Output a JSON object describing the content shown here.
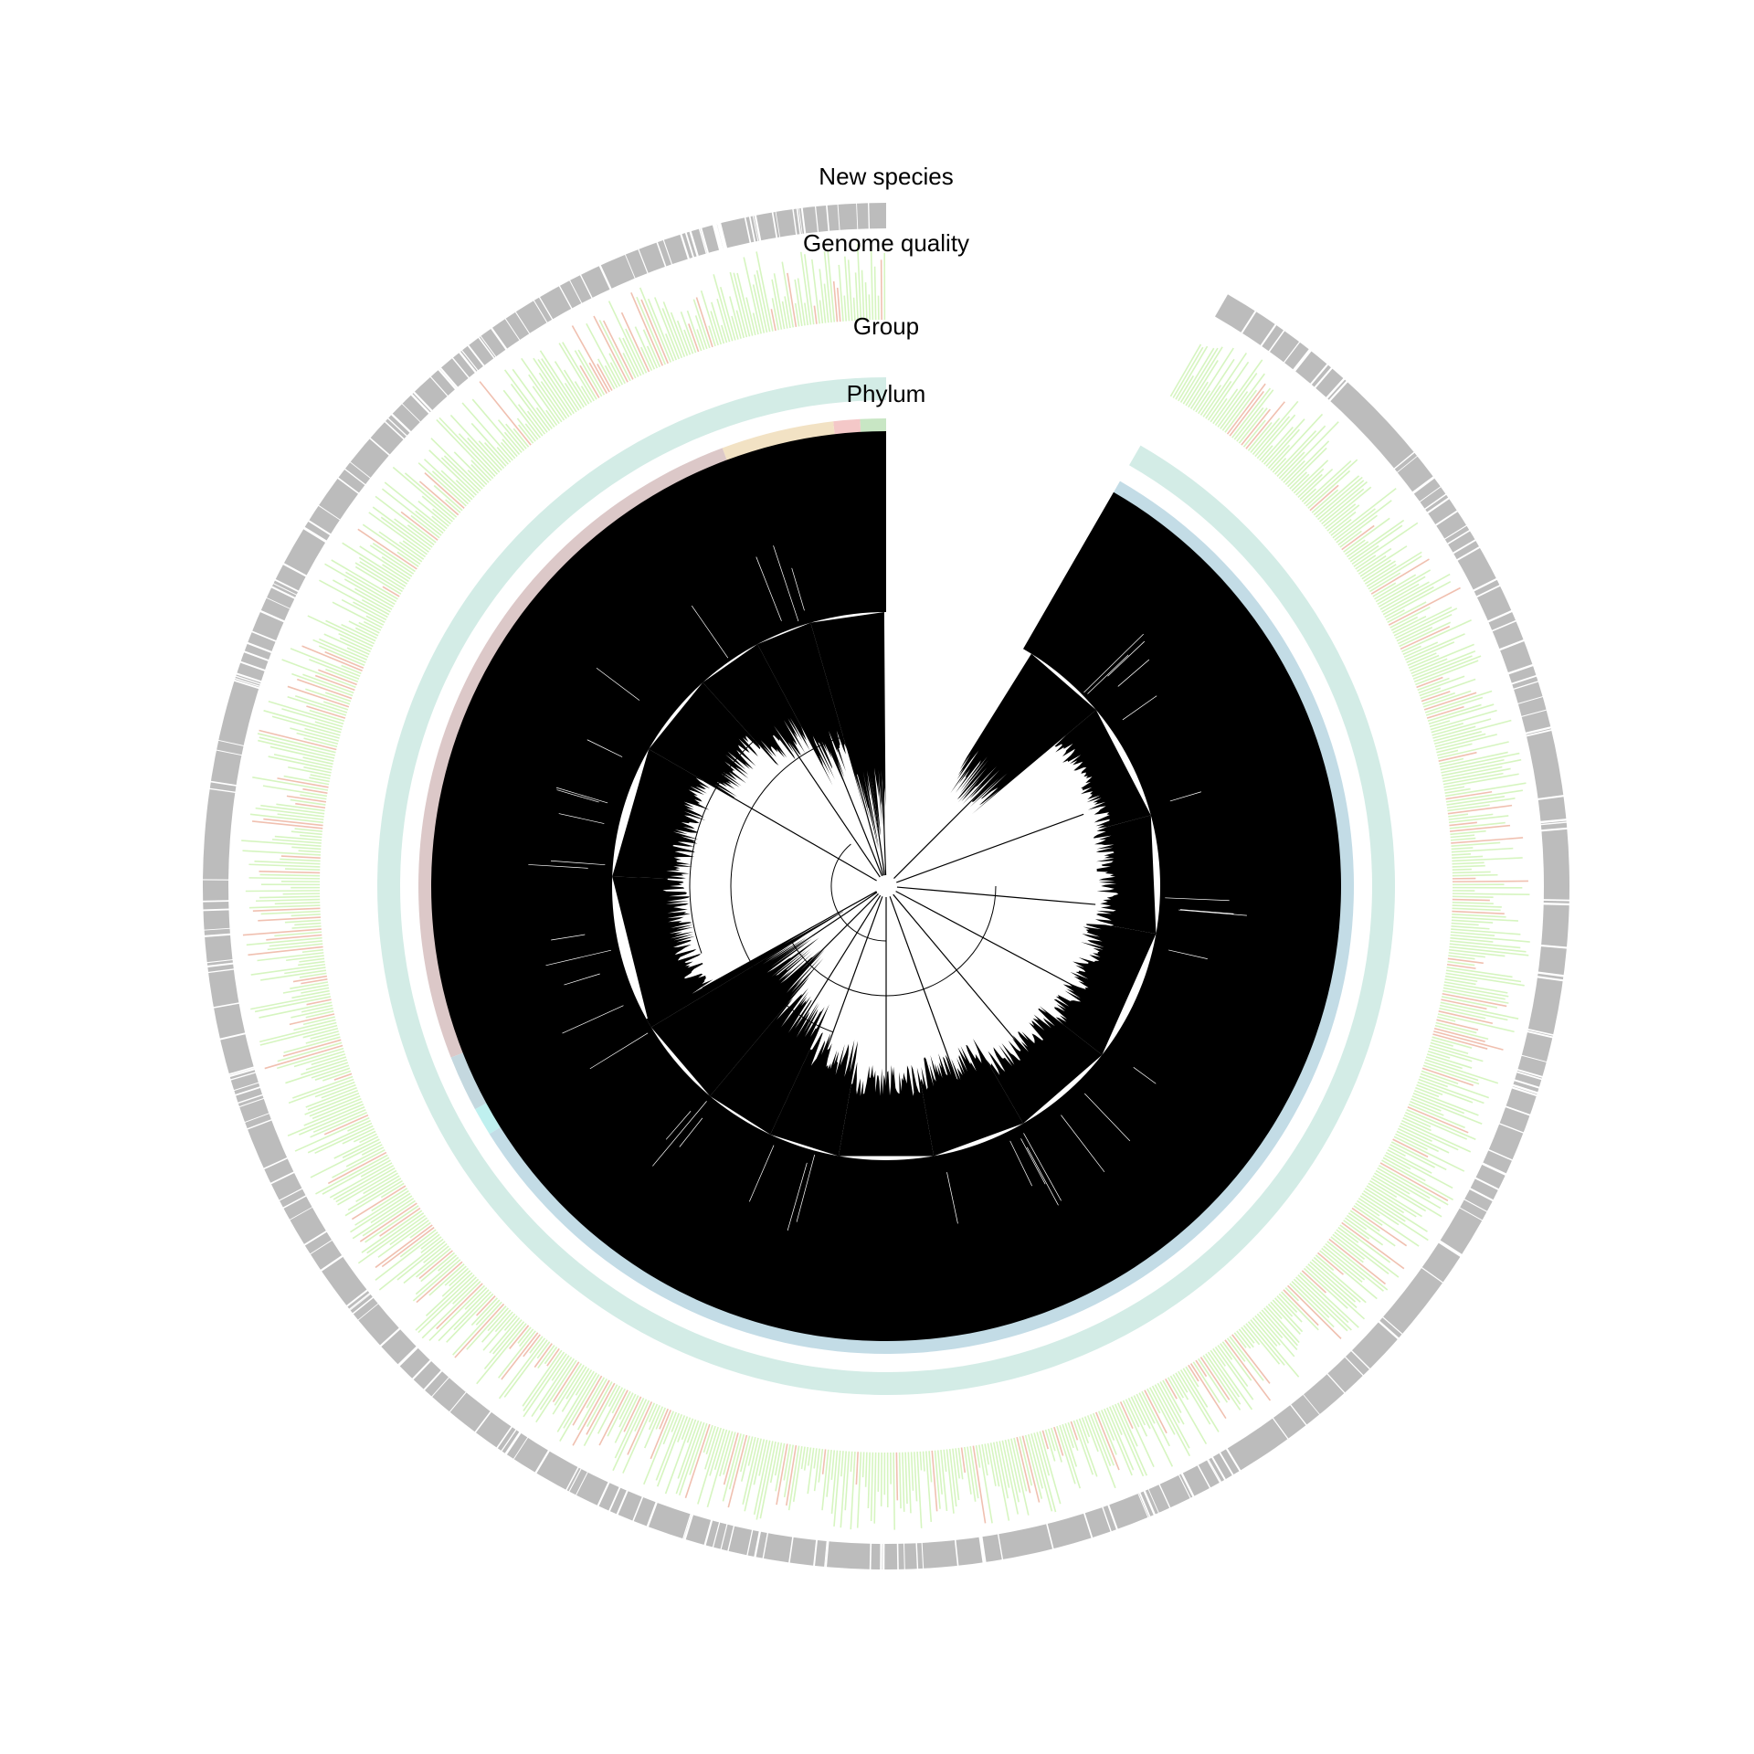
{
  "labels": {
    "new_species": "New species",
    "genome_quality": "Genome quality",
    "group": "Group",
    "phylum": "Phylum"
  },
  "colors": {
    "tree": "#000000",
    "new_species_mark": "#b0b0b0",
    "quality_high": "#d6f5c0",
    "quality_low": "#f0c0b0",
    "group": "#d3ece6",
    "phylum_rose": "#dcc8c8",
    "phylum_tan": "#f2e2c4",
    "phylum_pink": "#f4c8c8",
    "phylum_green": "#c8e6c4",
    "phylum_slate": "#c4d8df",
    "phylum_cyan": "#bff0ef",
    "phylum_blue": "#c3dce6"
  },
  "phylum_segments": [
    {
      "color_key": "phylum_green",
      "start": -3.2,
      "end": 0
    },
    {
      "color_key": "phylum_pink",
      "start": -6.5,
      "end": -3.2
    },
    {
      "color_key": "phylum_tan",
      "start": -20.5,
      "end": -6.5
    },
    {
      "color_key": "phylum_rose",
      "start": -111.5,
      "end": -20.5
    },
    {
      "color_key": "phylum_slate",
      "start": -118.5,
      "end": -111.5
    },
    {
      "color_key": "phylum_cyan",
      "start": -122,
      "end": -118.5
    },
    {
      "color_key": "phylum_blue",
      "start": -330,
      "end": -122
    }
  ],
  "gap": {
    "start": 0,
    "end": 30
  }
}
